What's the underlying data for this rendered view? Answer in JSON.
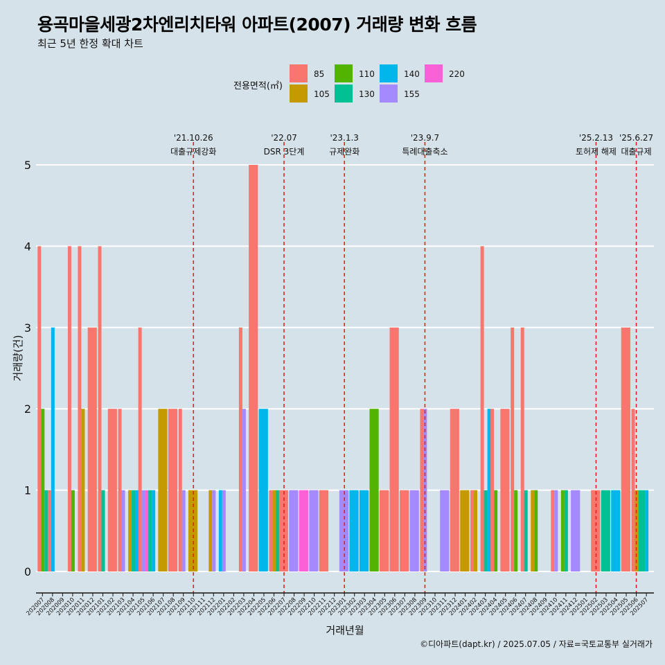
{
  "title": "용곡마을세광2차엔리치타워 아파트(2007) 거래량 변화 흐름",
  "subtitle": "최근 5년 한정 확대 차트",
  "caption": "©디아파트(dapt.kr) / 2025.07.05 / 자료=국토교통부 실거래가",
  "colors": {
    "background": "#d6e2e9",
    "gridline": "#ffffff",
    "event_line": "#e8201c"
  },
  "chart_data": {
    "type": "bar",
    "xlabel": "거래년월",
    "ylabel": "거래량(건)",
    "ylim": [
      0,
      5
    ],
    "yticks": [
      0,
      1,
      2,
      3,
      4,
      5
    ],
    "legend": {
      "title": "전용면적(㎡)",
      "position": "top",
      "entries": [
        {
          "name": "85",
          "color": "#f8766d"
        },
        {
          "name": "105",
          "color": "#c49a00"
        },
        {
          "name": "110",
          "color": "#53b400"
        },
        {
          "name": "130",
          "color": "#00c094"
        },
        {
          "name": "140",
          "color": "#00b6eb"
        },
        {
          "name": "155",
          "color": "#a58aff"
        },
        {
          "name": "220",
          "color": "#fb61d7"
        }
      ]
    },
    "months": [
      "202007",
      "202008",
      "202009",
      "202010",
      "202011",
      "202012",
      "202101",
      "202102",
      "202103",
      "202104",
      "202105",
      "202106",
      "202107",
      "202108",
      "202109",
      "202110",
      "202111",
      "202112",
      "202201",
      "202202",
      "202203",
      "202204",
      "202205",
      "202206",
      "202207",
      "202208",
      "202209",
      "202210",
      "202211",
      "202212",
      "202301",
      "202302",
      "202303",
      "202304",
      "202305",
      "202306",
      "202307",
      "202308",
      "202309",
      "202310",
      "202311",
      "202312",
      "202401",
      "202402",
      "202403",
      "202404",
      "202405",
      "202406",
      "202407",
      "202408",
      "202409",
      "202410",
      "202411",
      "202412",
      "202501",
      "202502",
      "202503",
      "202504",
      "202505",
      "202506",
      "202507"
    ],
    "series": [
      {
        "name": "85",
        "values": {
          "202007": 4,
          "202008": 1,
          "202010": 4,
          "202011": 4,
          "202012": 3,
          "202101": 4,
          "202102": 2,
          "202103": 2,
          "202105": 3,
          "202108": 2,
          "202109": 2,
          "202203": 3,
          "202204": 5,
          "202206": 1,
          "202207": 1,
          "202211": 1,
          "202305": 1,
          "202306": 3,
          "202307": 1,
          "202309": 2,
          "202312": 2,
          "202402": 1,
          "202403": 4,
          "202404": 2,
          "202405": 2,
          "202406": 3,
          "202407": 3,
          "202410": 1,
          "202502": 1,
          "202505": 3,
          "202506": 2
        }
      },
      {
        "name": "105",
        "values": {
          "202011": 2,
          "202104": 1,
          "202107": 2,
          "202110": 1,
          "202112": 1,
          "202206": 1,
          "202401": 1,
          "202402": 1,
          "202408": 1,
          "202506": 1
        }
      },
      {
        "name": "110",
        "values": {
          "202007": 2,
          "202010": 1,
          "202304": 2,
          "202404": 1,
          "202406": 1,
          "202408": 1,
          "202411": 1
        }
      },
      {
        "name": "130",
        "values": {
          "202007": 1,
          "202101": 1,
          "202104": 1,
          "202106": 1,
          "202206": 1,
          "202403": 1,
          "202407": 1,
          "202411": 1,
          "202503": 1,
          "202506": 1,
          "202507": 1
        }
      },
      {
        "name": "140",
        "values": {
          "202008": 3,
          "202104": 1,
          "202106": 1,
          "202201": 1,
          "202205": 2,
          "202302": 1,
          "202303": 1,
          "202403": 2,
          "202504": 1,
          "202507": 1
        }
      },
      {
        "name": "155",
        "values": {
          "202103": 1,
          "202105": 1,
          "202109": 1,
          "202112": 1,
          "202201": 1,
          "202203": 2,
          "202208": 1,
          "202210": 1,
          "202301": 1,
          "202308": 1,
          "202309": 2,
          "202311": 1,
          "202410": 1,
          "202412": 1
        }
      },
      {
        "name": "220",
        "values": {
          "202105": 1,
          "202209": 1
        }
      }
    ],
    "events": [
      {
        "month": "202110",
        "date": "'21.10.26",
        "label": "대출규제강화"
      },
      {
        "month": "202207",
        "date": "'22.07",
        "label": "DSR 3단계"
      },
      {
        "month": "202301",
        "date": "'23.1.3",
        "label": "규제완화"
      },
      {
        "month": "202309",
        "date": "'23.9.7",
        "label": "특례대출축소"
      },
      {
        "month": "202502",
        "date": "'25.2.13",
        "label": "토허제 해제"
      },
      {
        "month": "202506",
        "date": "'25.6.27",
        "label": "대출규제"
      }
    ]
  }
}
